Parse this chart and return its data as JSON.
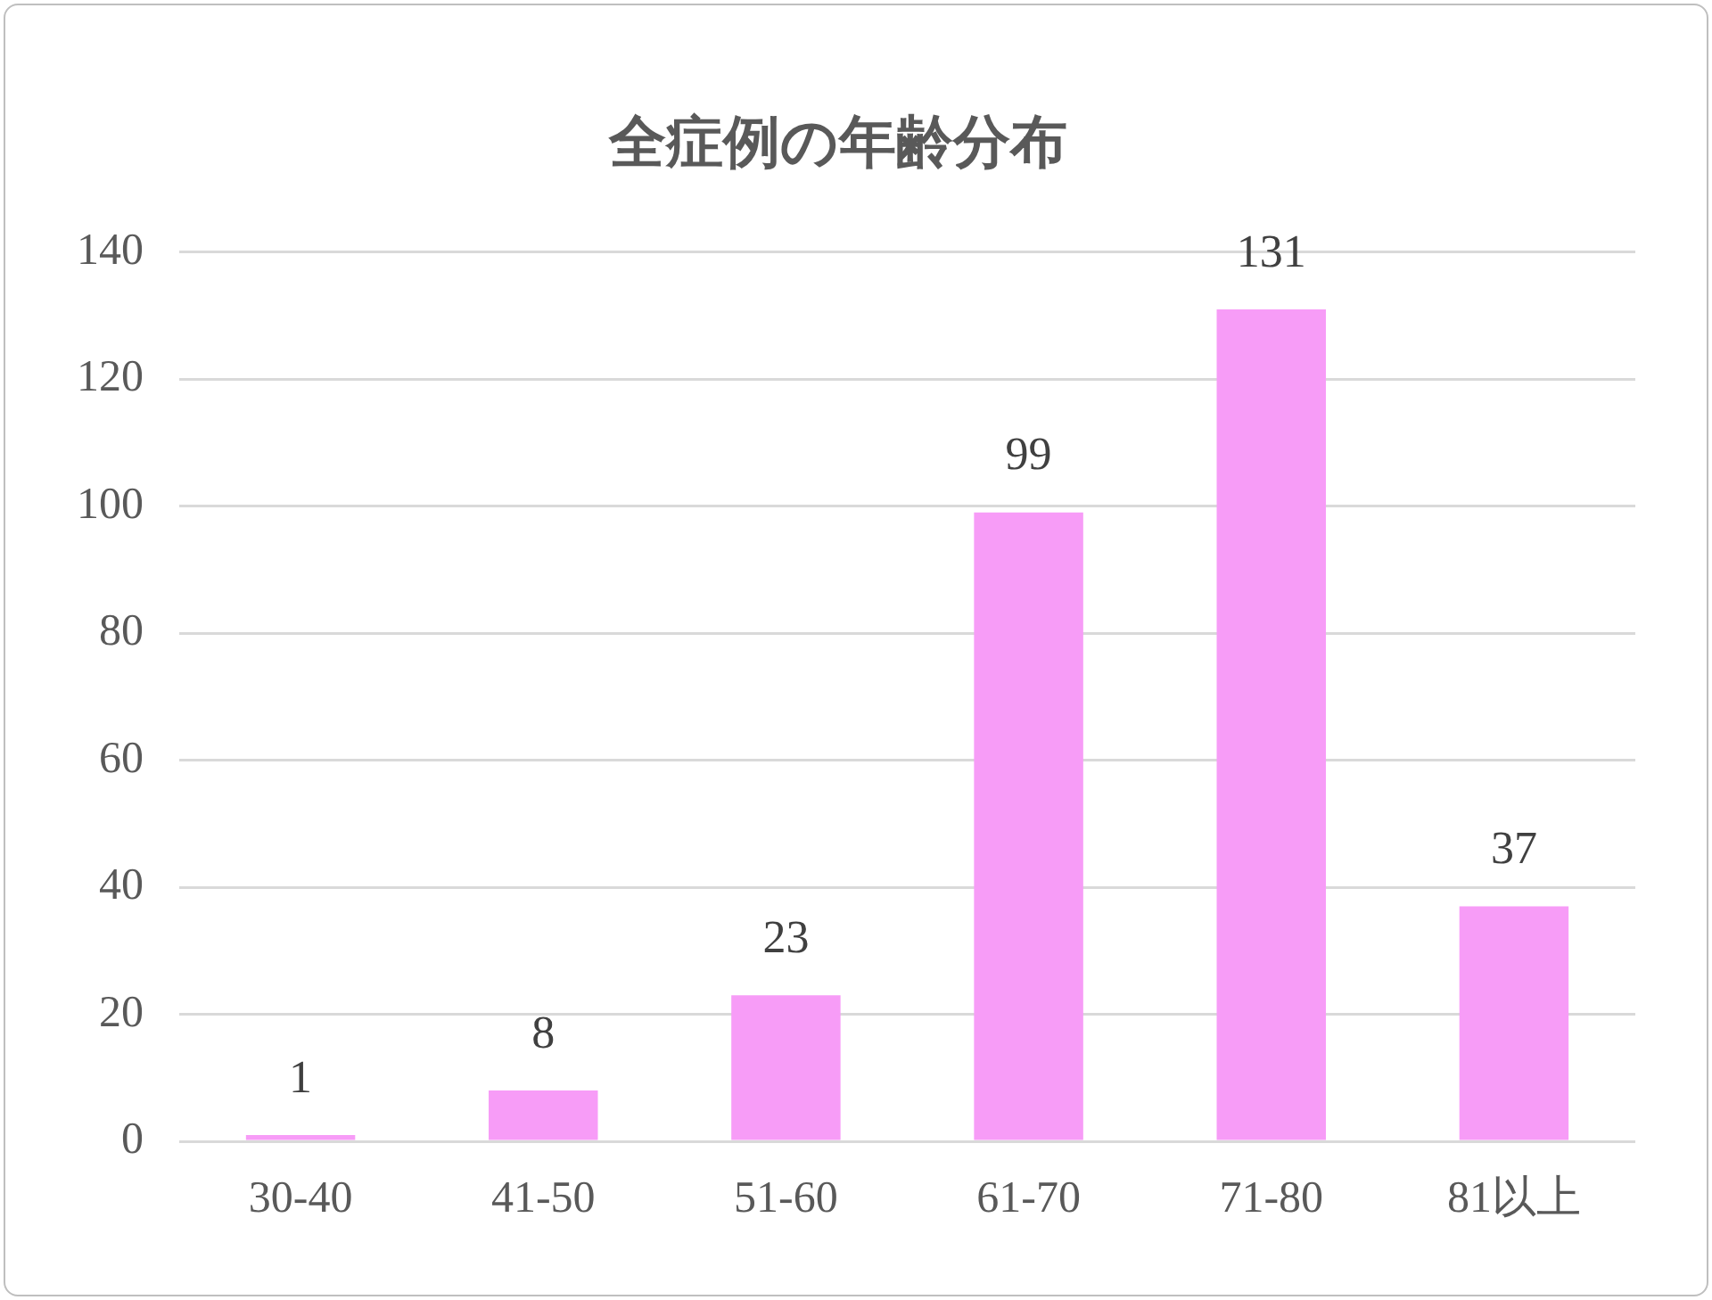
{
  "chart_data": {
    "type": "bar",
    "title": "全症例の年齢分布",
    "categories": [
      "30-40",
      "41-50",
      "51-60",
      "61-70",
      "71-80",
      "81以上"
    ],
    "values": [
      1,
      8,
      23,
      99,
      131,
      37
    ],
    "color": "#f79cf7",
    "ylim": [
      0,
      140
    ],
    "yticks": [
      0,
      20,
      40,
      60,
      80,
      100,
      120,
      140
    ],
    "grid": "y",
    "data_labels": true,
    "legend": false
  }
}
